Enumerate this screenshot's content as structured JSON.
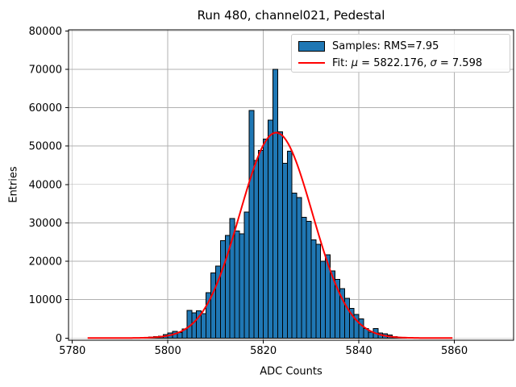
{
  "title": "Run 480, channel021, Pedestal",
  "axes": {
    "xlabel": "ADC Counts",
    "ylabel": "Entries"
  },
  "legend": {
    "samples_label": "Samples: RMS=7.95",
    "fit_label_parts": [
      {
        "text": "Fit: "
      },
      {
        "text": "μ",
        "italic": true
      },
      {
        "text": " = 5822.176, "
      },
      {
        "text": "σ",
        "italic": true
      },
      {
        "text": " = 7.598"
      }
    ]
  },
  "colors": {
    "bar_fill": "#1f77b4",
    "bar_edge": "#000000",
    "fit_line": "#ff0000",
    "grid": "#b0b0b0",
    "spine": "#000000",
    "text": "#000000"
  },
  "chart_data": {
    "type": "bar",
    "subtype": "histogram",
    "title": "Run 480, channel021, Pedestal",
    "xlabel": "ADC Counts",
    "ylabel": "Entries",
    "bin_start": 5794,
    "bin_width": 1,
    "values": [
      100,
      150,
      250,
      400,
      500,
      900,
      1300,
      1700,
      1400,
      2400,
      7200,
      6600,
      7100,
      6400,
      11800,
      17000,
      18800,
      25400,
      26700,
      31100,
      27900,
      27100,
      32800,
      59300,
      46300,
      48900,
      51800,
      56800,
      70000,
      53700,
      45500,
      48700,
      37800,
      36600,
      31400,
      30400,
      25600,
      24400,
      20000,
      21700,
      17500,
      15300,
      12900,
      10400,
      7700,
      6200,
      5000,
      2500,
      1500,
      2500,
      1300,
      1100,
      800,
      400,
      200,
      150
    ],
    "x_ticks": [
      5780,
      5800,
      5820,
      5840,
      5860
    ],
    "y_ticks": [
      0,
      10000,
      20000,
      30000,
      40000,
      50000,
      60000,
      70000,
      80000
    ],
    "xlim": [
      5779.2,
      5872.4
    ],
    "ylim": [
      -570,
      80270
    ],
    "grid": true,
    "legend_position": "upper right",
    "rms": 7.95,
    "fit": {
      "mu": 5822.176,
      "sigma": 7.598,
      "amplitude": 53500,
      "draw_center": 5822.68,
      "x_start": 5783.2,
      "x_end": 5859.6
    }
  }
}
